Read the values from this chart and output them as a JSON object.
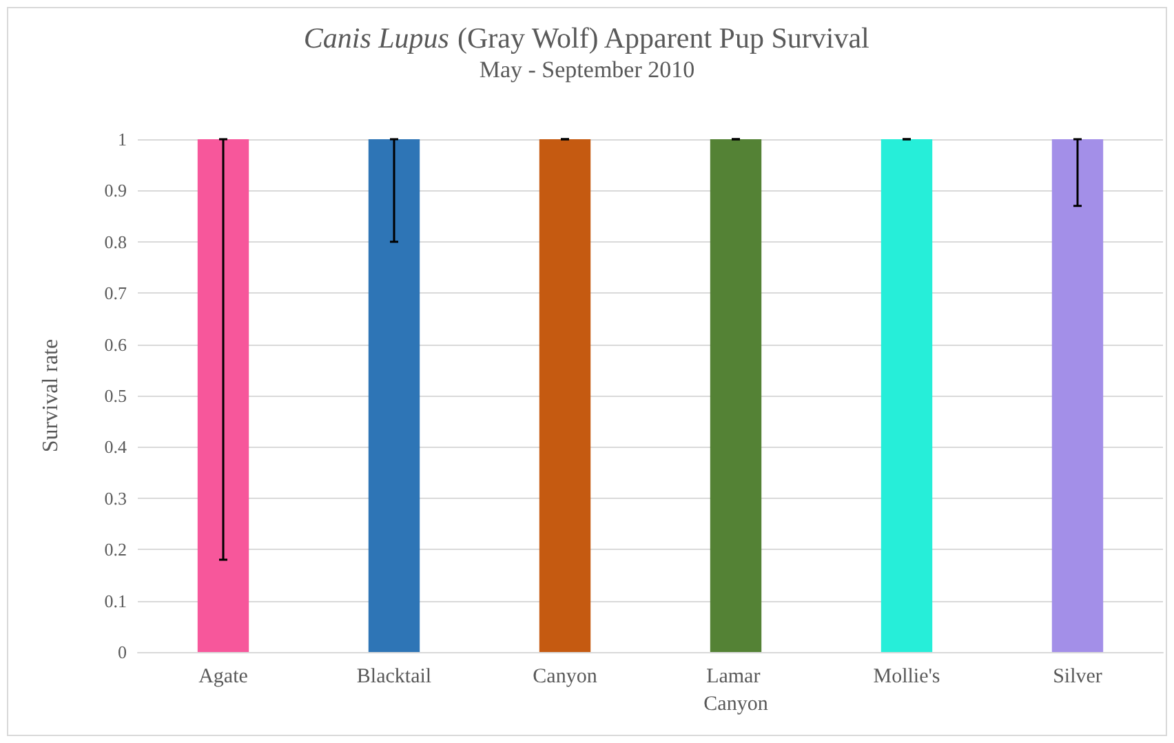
{
  "chart_data": {
    "type": "bar",
    "title": "Canis Lupus (Gray Wolf) Apparent Pup Survival",
    "subtitle": "May - September 2010",
    "ylabel": "Survival rate",
    "categories": [
      "Agate",
      "Blacktail",
      "Canyon",
      "Lamar Canyon",
      "Mollie's",
      "Silver"
    ],
    "values": [
      1,
      1,
      1,
      1,
      1,
      1
    ],
    "colors": [
      "#f7579b",
      "#2e75b6",
      "#c55a11",
      "#548235",
      "#26eed9",
      "#a38fe8"
    ],
    "errors": [
      [
        0.18,
        1
      ],
      [
        0.8,
        1
      ],
      [
        1,
        1
      ],
      [
        1,
        1
      ],
      [
        1,
        1
      ],
      [
        0.87,
        1
      ]
    ],
    "ylim": [
      0,
      1
    ],
    "yticks": [
      0,
      0.1,
      0.2,
      0.3,
      0.4,
      0.5,
      0.6,
      0.7,
      0.8,
      0.9,
      1
    ],
    "grid": "y"
  }
}
